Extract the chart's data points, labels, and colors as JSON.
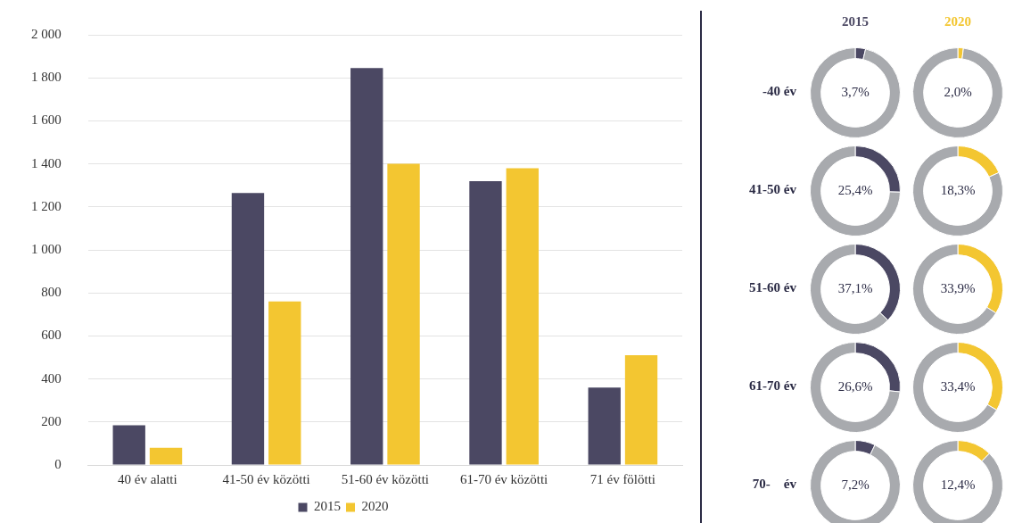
{
  "chart_data": [
    {
      "type": "bar",
      "categories": [
        "40 év alatti",
        "41-50 év közötti",
        "51-60 év közötti",
        "61-70 év közötti",
        "71 év fölötti"
      ],
      "series": [
        {
          "name": "2015",
          "color": "#4b4863",
          "values": [
            185,
            1265,
            1845,
            1320,
            360
          ]
        },
        {
          "name": "2020",
          "color": "#f3c631",
          "values": [
            80,
            760,
            1400,
            1380,
            510
          ]
        }
      ],
      "ylim": [
        0,
        2000
      ],
      "yticks": [
        {
          "value": 0,
          "label": "0"
        },
        {
          "value": 200,
          "label": "200"
        },
        {
          "value": 400,
          "label": "400"
        },
        {
          "value": 600,
          "label": "600"
        },
        {
          "value": 800,
          "label": "800"
        },
        {
          "value": 1000,
          "label": "1 000"
        },
        {
          "value": 1200,
          "label": "1 200"
        },
        {
          "value": 1400,
          "label": "1 400"
        },
        {
          "value": 1600,
          "label": "1 600"
        },
        {
          "value": 1800,
          "label": "1 800"
        },
        {
          "value": 2000,
          "label": "2 000"
        }
      ],
      "grid": "y",
      "legend": "bottom"
    },
    {
      "type": "donut",
      "title": "2015",
      "ylabel": "-40 év",
      "categories": [
        null,
        null
      ],
      "values": [
        3.7,
        96.3
      ],
      "colors": [
        "#4b4863",
        "#a8aaae"
      ],
      "value_labels": [
        "3,7%",
        null
      ]
    },
    {
      "type": "donut",
      "title": "2020",
      "categories": [
        null,
        null
      ],
      "values": [
        2.0,
        98.0
      ],
      "colors": [
        "#f3c631",
        "#a8aaae"
      ],
      "value_labels": [
        "2,0%",
        null
      ]
    },
    {
      "type": "donut",
      "ylabel": "41-50 év",
      "categories": [
        null,
        null
      ],
      "values": [
        25.4,
        74.6
      ],
      "colors": [
        "#4b4863",
        "#a8aaae"
      ],
      "value_labels": [
        "25,4%",
        null
      ]
    },
    {
      "type": "donut",
      "categories": [
        null,
        null
      ],
      "values": [
        18.3,
        81.7
      ],
      "colors": [
        "#f3c631",
        "#a8aaae"
      ],
      "value_labels": [
        "18,3%",
        null
      ]
    },
    {
      "type": "donut",
      "ylabel": "51-60 év",
      "categories": [
        null,
        null
      ],
      "values": [
        37.1,
        62.9
      ],
      "colors": [
        "#4b4863",
        "#a8aaae"
      ],
      "value_labels": [
        "37,1%",
        null
      ]
    },
    {
      "type": "donut",
      "categories": [
        null,
        null
      ],
      "values": [
        33.9,
        66.1
      ],
      "colors": [
        "#f3c631",
        "#a8aaae"
      ],
      "value_labels": [
        "33,9%",
        null
      ]
    },
    {
      "type": "donut",
      "ylabel": "61-70 év",
      "categories": [
        null,
        null
      ],
      "values": [
        26.6,
        73.4
      ],
      "colors": [
        "#4b4863",
        "#a8aaae"
      ],
      "value_labels": [
        "26,6%",
        null
      ]
    },
    {
      "type": "donut",
      "categories": [
        null,
        null
      ],
      "values": [
        33.4,
        66.6
      ],
      "colors": [
        "#f3c631",
        "#a8aaae"
      ],
      "value_labels": [
        "33,4%",
        null
      ]
    },
    {
      "type": "donut",
      "ylabel": "70-    év",
      "categories": [
        null,
        null
      ],
      "values": [
        7.2,
        92.8
      ],
      "colors": [
        "#4b4863",
        "#a8aaae"
      ],
      "value_labels": [
        "7,2%",
        null
      ]
    },
    {
      "type": "donut",
      "categories": [
        null,
        null
      ],
      "values": [
        12.4,
        87.6
      ],
      "colors": [
        "#f3c631",
        "#a8aaae"
      ],
      "value_labels": [
        "12,4%",
        null
      ]
    }
  ]
}
